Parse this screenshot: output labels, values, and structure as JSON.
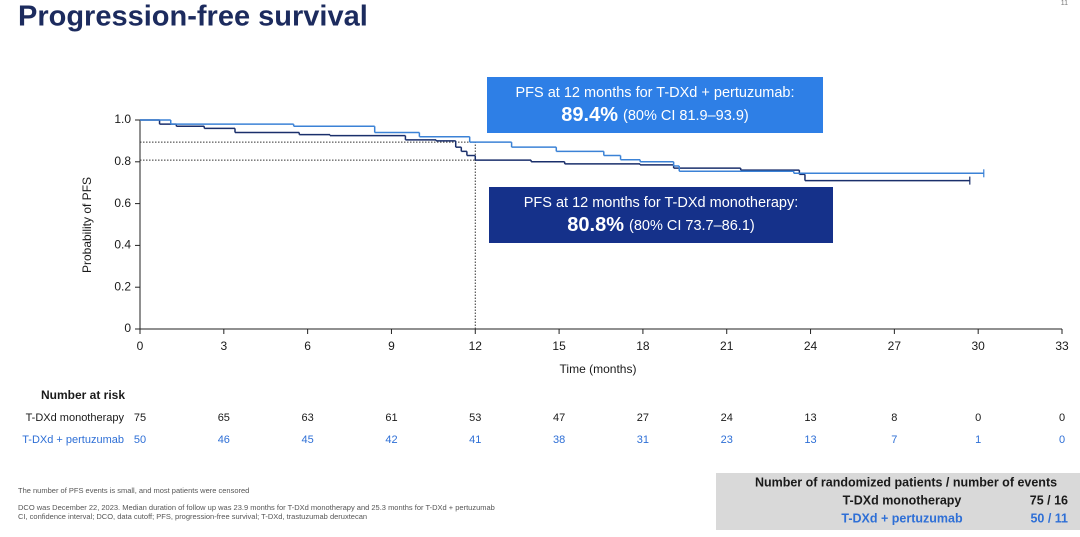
{
  "title": "Progression-free survival",
  "page_number": "11",
  "chart_data": {
    "type": "step",
    "xlabel": "Time (months)",
    "ylabel": "Probability of PFS",
    "xlim": [
      0,
      33
    ],
    "xticks": [
      0,
      3,
      6,
      9,
      12,
      15,
      18,
      21,
      24,
      27,
      30,
      33
    ],
    "ylim": [
      0,
      1
    ],
    "yticks": [
      0,
      0.2,
      0.4,
      0.6,
      0.8,
      {
        "value": 1,
        "label": "1.0"
      }
    ],
    "landmark_x": 12,
    "landmark_y": [
      0.894,
      0.808
    ],
    "series": [
      {
        "name": "T-DXd monotherapy",
        "color": "#1a2f6b",
        "x": [
          0,
          0.7,
          1.3,
          2.3,
          3.4,
          5.7,
          6.8,
          9.5,
          10.6,
          11.3,
          11.5,
          11.7,
          12.0,
          14.0,
          15.2,
          17.9,
          19.1,
          21.5,
          23.6,
          23.8,
          29.7
        ],
        "values": [
          1.0,
          0.98,
          0.97,
          0.96,
          0.94,
          0.93,
          0.925,
          0.905,
          0.9,
          0.87,
          0.85,
          0.83,
          0.808,
          0.8,
          0.79,
          0.785,
          0.77,
          0.76,
          0.74,
          0.71,
          0.71
        ],
        "at_risk": [
          "75",
          "65",
          "63",
          "61",
          "53",
          "47",
          "27",
          "24",
          "13",
          "8",
          "0",
          "0"
        ]
      },
      {
        "name": "T-DXd + pertuzumab",
        "color": "#3b82d6",
        "x": [
          0,
          1.1,
          5.5,
          8.4,
          10.0,
          11.8,
          13.3,
          14.9,
          16.6,
          17.2,
          17.9,
          19.1,
          19.3,
          23.4,
          30.2
        ],
        "values": [
          1.0,
          0.98,
          0.97,
          0.94,
          0.92,
          0.894,
          0.87,
          0.85,
          0.83,
          0.81,
          0.8,
          0.78,
          0.755,
          0.745,
          0.745
        ],
        "at_risk": [
          "50",
          "46",
          "45",
          "42",
          "41",
          "38",
          "31",
          "23",
          "13",
          "7",
          "1",
          "0"
        ]
      }
    ],
    "annotations": [
      {
        "text": "PFS at 12 months for T-DXd + pertuzumab:",
        "value_label": "89.4%",
        "ci": "(80% CI 81.9–93.9)",
        "color": "#2e7fe6"
      },
      {
        "text": "PFS at 12 months for T-DXd monotherapy:",
        "value_label": "80.8%",
        "ci": "(80% CI 73.7–86.1)",
        "color": "#15318a"
      }
    ],
    "risk_title": "Number at risk"
  },
  "summary_box": {
    "title": "Number of randomized patients / number of events",
    "rows": [
      {
        "label": "T-DXd monotherapy",
        "value": "75 / 16",
        "color": "#1a1a1a"
      },
      {
        "label": "T-DXd + pertuzumab",
        "value": "50 / 11",
        "color": "#2e6fd6"
      }
    ]
  },
  "footnotes": [
    "The number of PFS events is small, and most patients were censored",
    "DCO was December 22, 2023. Median duration of follow up was 23.9 months for T-DXd monotherapy and 25.3 months for T-DXd + pertuzumab",
    "CI, confidence interval; DCO, data cutoff; PFS, progression-free survival; T-DXd, trastuzumab  deruxtecan"
  ]
}
